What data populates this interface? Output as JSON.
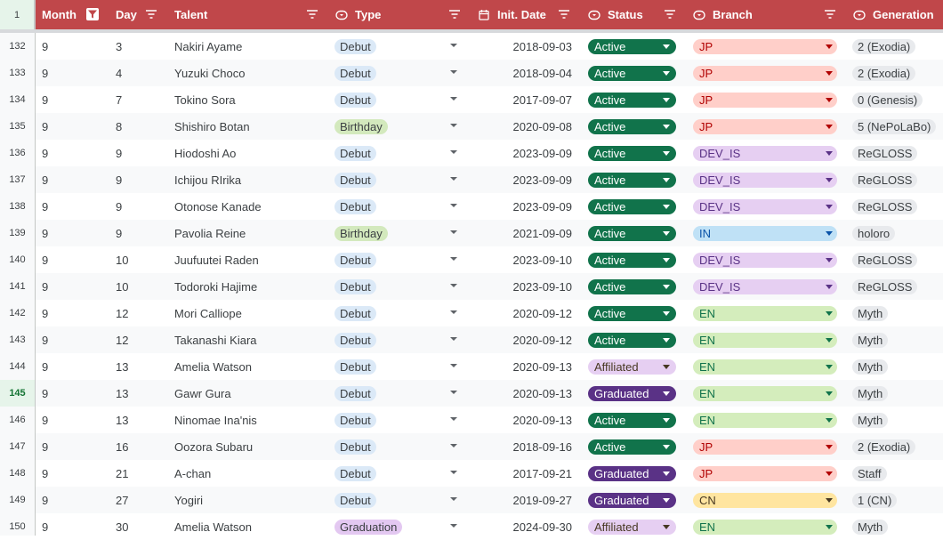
{
  "header": {
    "row_number": "1",
    "columns": [
      {
        "key": "month",
        "label": "Month",
        "icon": "filter-active-icon"
      },
      {
        "key": "day",
        "label": "Day",
        "icon": "filter-icon"
      },
      {
        "key": "talent",
        "label": "Talent",
        "icon": "filter-icon"
      },
      {
        "key": "type",
        "label": "Type",
        "icon": "dropdown-chip-icon"
      },
      {
        "key": "date",
        "label": "Init. Date",
        "icon": "calendar-icon"
      },
      {
        "key": "status",
        "label": "Status",
        "icon": "dropdown-chip-icon"
      },
      {
        "key": "branch",
        "label": "Branch",
        "icon": "dropdown-chip-icon"
      },
      {
        "key": "generation",
        "label": "Generation",
        "icon": "dropdown-chip-icon"
      }
    ]
  },
  "colors": {
    "header_bg": "#c0474a",
    "active": "#11734b",
    "graduated": "#5a3286",
    "affiliated": "#e6cff2"
  },
  "selected_row": "145",
  "rows": [
    {
      "num": "132",
      "month": "9",
      "day": "3",
      "talent": "Nakiri Ayame",
      "type": "Debut",
      "date": "2018-09-03",
      "status": "Active",
      "branch": "JP",
      "generation": "2 (Exodia)"
    },
    {
      "num": "133",
      "month": "9",
      "day": "4",
      "talent": "Yuzuki Choco",
      "type": "Debut",
      "date": "2018-09-04",
      "status": "Active",
      "branch": "JP",
      "generation": "2 (Exodia)"
    },
    {
      "num": "134",
      "month": "9",
      "day": "7",
      "talent": "Tokino Sora",
      "type": "Debut",
      "date": "2017-09-07",
      "status": "Active",
      "branch": "JP",
      "generation": "0 (Genesis)"
    },
    {
      "num": "135",
      "month": "9",
      "day": "8",
      "talent": "Shishiro Botan",
      "type": "Birthday",
      "date": "2020-09-08",
      "status": "Active",
      "branch": "JP",
      "generation": "5 (NePoLaBo)"
    },
    {
      "num": "136",
      "month": "9",
      "day": "9",
      "talent": "Hiodoshi Ao",
      "type": "Debut",
      "date": "2023-09-09",
      "status": "Active",
      "branch": "DEV_IS",
      "generation": "ReGLOSS"
    },
    {
      "num": "137",
      "month": "9",
      "day": "9",
      "talent": "Ichijou RIrika",
      "type": "Debut",
      "date": "2023-09-09",
      "status": "Active",
      "branch": "DEV_IS",
      "generation": "ReGLOSS"
    },
    {
      "num": "138",
      "month": "9",
      "day": "9",
      "talent": "Otonose Kanade",
      "type": "Debut",
      "date": "2023-09-09",
      "status": "Active",
      "branch": "DEV_IS",
      "generation": "ReGLOSS"
    },
    {
      "num": "139",
      "month": "9",
      "day": "9",
      "talent": "Pavolia Reine",
      "type": "Birthday",
      "date": "2021-09-09",
      "status": "Active",
      "branch": "IN",
      "generation": "holoro"
    },
    {
      "num": "140",
      "month": "9",
      "day": "10",
      "talent": "Juufuutei Raden",
      "type": "Debut",
      "date": "2023-09-10",
      "status": "Active",
      "branch": "DEV_IS",
      "generation": "ReGLOSS"
    },
    {
      "num": "141",
      "month": "9",
      "day": "10",
      "talent": "Todoroki Hajime",
      "type": "Debut",
      "date": "2023-09-10",
      "status": "Active",
      "branch": "DEV_IS",
      "generation": "ReGLOSS"
    },
    {
      "num": "142",
      "month": "9",
      "day": "12",
      "talent": "Mori Calliope",
      "type": "Debut",
      "date": "2020-09-12",
      "status": "Active",
      "branch": "EN",
      "generation": "Myth"
    },
    {
      "num": "143",
      "month": "9",
      "day": "12",
      "talent": "Takanashi Kiara",
      "type": "Debut",
      "date": "2020-09-12",
      "status": "Active",
      "branch": "EN",
      "generation": "Myth"
    },
    {
      "num": "144",
      "month": "9",
      "day": "13",
      "talent": "Amelia Watson",
      "type": "Debut",
      "date": "2020-09-13",
      "status": "Affiliated",
      "branch": "EN",
      "generation": "Myth"
    },
    {
      "num": "145",
      "month": "9",
      "day": "13",
      "talent": "Gawr Gura",
      "type": "Debut",
      "date": "2020-09-13",
      "status": "Graduated",
      "branch": "EN",
      "generation": "Myth"
    },
    {
      "num": "146",
      "month": "9",
      "day": "13",
      "talent": "Ninomae Ina'nis",
      "type": "Debut",
      "date": "2020-09-13",
      "status": "Active",
      "branch": "EN",
      "generation": "Myth"
    },
    {
      "num": "147",
      "month": "9",
      "day": "16",
      "talent": "Oozora Subaru",
      "type": "Debut",
      "date": "2018-09-16",
      "status": "Active",
      "branch": "JP",
      "generation": "2 (Exodia)"
    },
    {
      "num": "148",
      "month": "9",
      "day": "21",
      "talent": "A-chan",
      "type": "Debut",
      "date": "2017-09-21",
      "status": "Graduated",
      "branch": "JP",
      "generation": "Staff"
    },
    {
      "num": "149",
      "month": "9",
      "day": "27",
      "talent": "Yogiri",
      "type": "Debut",
      "date": "2019-09-27",
      "status": "Graduated",
      "branch": "CN",
      "generation": "1 (CN)"
    },
    {
      "num": "150",
      "month": "9",
      "day": "30",
      "talent": "Amelia Watson",
      "type": "Graduation",
      "date": "2024-09-30",
      "status": "Affiliated",
      "branch": "EN",
      "generation": "Myth"
    }
  ]
}
